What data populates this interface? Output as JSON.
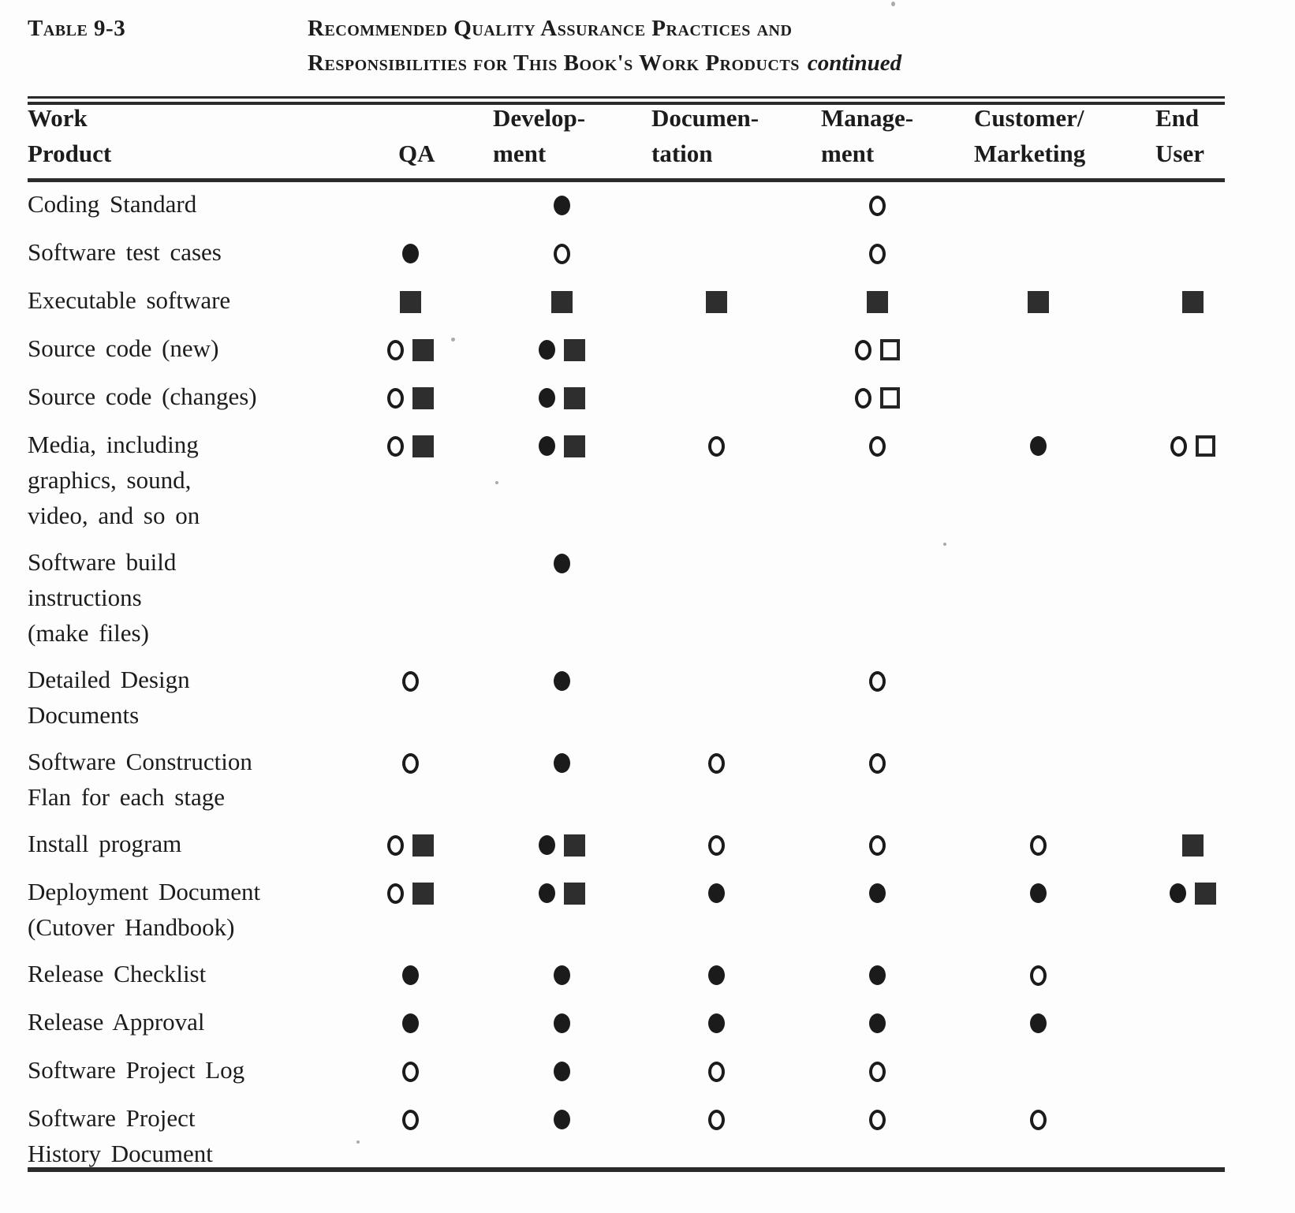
{
  "colors": {
    "ink": "#1c1c1c",
    "paper": "#fdfdfd"
  },
  "table": {
    "label": "Table 9-3",
    "title": {
      "line1": "Recommended Quality Assurance Practices and",
      "line2": "Responsibilities for This Book's Work Products",
      "continued": "continued"
    },
    "columns": [
      {
        "key": "work_product",
        "line1": "Work",
        "line2": "Product"
      },
      {
        "key": "qa",
        "line1": "",
        "line2": "QA"
      },
      {
        "key": "development",
        "line1": "Develop-",
        "line2": "ment"
      },
      {
        "key": "documentation",
        "line1": "Documen-",
        "line2": "tation"
      },
      {
        "key": "management",
        "line1": "Manage-",
        "line2": "ment"
      },
      {
        "key": "customer_marketing",
        "line1": "Customer/",
        "line2": "Marketing"
      },
      {
        "key": "end_user",
        "line1": "End",
        "line2": "User"
      }
    ],
    "symbols": {
      "filled-circle": "●",
      "open-circle": "○",
      "filled-square": "■",
      "open-square": "□"
    },
    "rows": [
      {
        "label": "Coding Standard",
        "cells": {
          "qa": [],
          "development": [
            "filled-circle"
          ],
          "documentation": [],
          "management": [
            "open-circle"
          ],
          "customer_marketing": [],
          "end_user": []
        }
      },
      {
        "label": "Software test cases",
        "cells": {
          "qa": [
            "filled-circle"
          ],
          "development": [
            "open-circle"
          ],
          "documentation": [],
          "management": [
            "open-circle"
          ],
          "customer_marketing": [],
          "end_user": []
        }
      },
      {
        "label": "Executable software",
        "cells": {
          "qa": [
            "filled-square"
          ],
          "development": [
            "filled-square"
          ],
          "documentation": [
            "filled-square"
          ],
          "management": [
            "filled-square"
          ],
          "customer_marketing": [
            "filled-square"
          ],
          "end_user": [
            "filled-square"
          ]
        }
      },
      {
        "label": "Source code (new)",
        "cells": {
          "qa": [
            "open-circle",
            "filled-square"
          ],
          "development": [
            "filled-circle",
            "filled-square"
          ],
          "documentation": [],
          "management": [
            "open-circle",
            "open-square"
          ],
          "customer_marketing": [],
          "end_user": []
        }
      },
      {
        "label": "Source code (changes)",
        "cells": {
          "qa": [
            "open-circle",
            "filled-square"
          ],
          "development": [
            "filled-circle",
            "filled-square"
          ],
          "documentation": [],
          "management": [
            "open-circle",
            "open-square"
          ],
          "customer_marketing": [],
          "end_user": []
        }
      },
      {
        "label": "Media, including\ngraphics, sound,\nvideo, and so on",
        "cells": {
          "qa": [
            "open-circle",
            "filled-square"
          ],
          "development": [
            "filled-circle",
            "filled-square"
          ],
          "documentation": [
            "open-circle"
          ],
          "management": [
            "open-circle"
          ],
          "customer_marketing": [
            "filled-circle"
          ],
          "end_user": [
            "open-circle",
            "open-square"
          ]
        }
      },
      {
        "label": "Software build\ninstructions\n(make files)",
        "cells": {
          "qa": [],
          "development": [
            "filled-circle"
          ],
          "documentation": [],
          "management": [],
          "customer_marketing": [],
          "end_user": []
        }
      },
      {
        "label": "Detailed Design\nDocuments",
        "cells": {
          "qa": [
            "open-circle"
          ],
          "development": [
            "filled-circle"
          ],
          "documentation": [],
          "management": [
            "open-circle"
          ],
          "customer_marketing": [],
          "end_user": []
        }
      },
      {
        "label": "Software Construction\nFlan for each stage",
        "cells": {
          "qa": [
            "open-circle"
          ],
          "development": [
            "filled-circle"
          ],
          "documentation": [
            "open-circle"
          ],
          "management": [
            "open-circle"
          ],
          "customer_marketing": [],
          "end_user": []
        }
      },
      {
        "label": "Install program",
        "cells": {
          "qa": [
            "open-circle",
            "filled-square"
          ],
          "development": [
            "filled-circle",
            "filled-square"
          ],
          "documentation": [
            "open-circle"
          ],
          "management": [
            "open-circle"
          ],
          "customer_marketing": [
            "open-circle"
          ],
          "end_user": [
            "filled-square"
          ]
        }
      },
      {
        "label": "Deployment Document\n(Cutover Handbook)",
        "cells": {
          "qa": [
            "open-circle",
            "filled-square"
          ],
          "development": [
            "filled-circle",
            "filled-square"
          ],
          "documentation": [
            "filled-circle"
          ],
          "management": [
            "filled-circle"
          ],
          "customer_marketing": [
            "filled-circle"
          ],
          "end_user": [
            "filled-circle",
            "filled-square"
          ]
        }
      },
      {
        "label": "Release Checklist",
        "cells": {
          "qa": [
            "filled-circle"
          ],
          "development": [
            "filled-circle"
          ],
          "documentation": [
            "filled-circle"
          ],
          "management": [
            "filled-circle"
          ],
          "customer_marketing": [
            "open-circle"
          ],
          "end_user": []
        }
      },
      {
        "label": "Release Approval",
        "cells": {
          "qa": [
            "filled-circle"
          ],
          "development": [
            "filled-circle"
          ],
          "documentation": [
            "filled-circle"
          ],
          "management": [
            "filled-circle"
          ],
          "customer_marketing": [
            "filled-circle"
          ],
          "end_user": []
        }
      },
      {
        "label": "Software Project Log",
        "cells": {
          "qa": [
            "open-circle"
          ],
          "development": [
            "filled-circle"
          ],
          "documentation": [
            "open-circle"
          ],
          "management": [
            "open-circle"
          ],
          "customer_marketing": [],
          "end_user": []
        }
      },
      {
        "label": "Software Project\nHistory Document",
        "cells": {
          "qa": [
            "open-circle"
          ],
          "development": [
            "filled-circle"
          ],
          "documentation": [
            "open-circle"
          ],
          "management": [
            "open-circle"
          ],
          "customer_marketing": [
            "open-circle"
          ],
          "end_user": []
        }
      }
    ]
  }
}
